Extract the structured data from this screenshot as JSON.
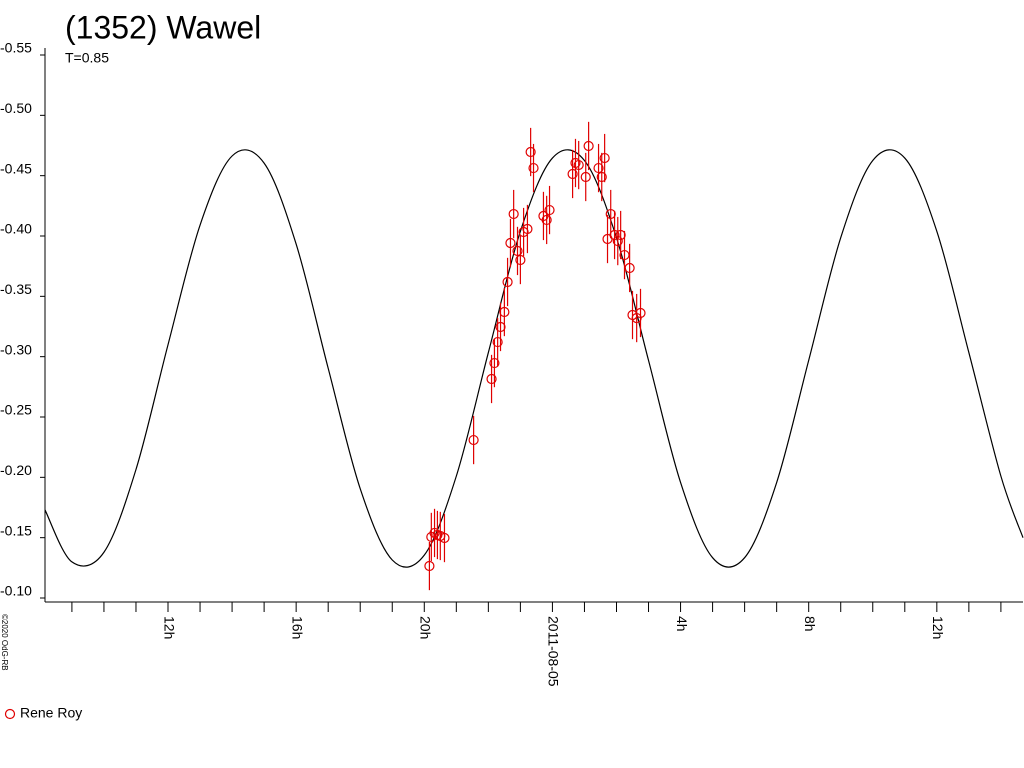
{
  "chart_data": {
    "type": "scatter",
    "title": "(1352) Wawel",
    "subtitle": "T=0.85",
    "copyright": "©2020 OdG-RB",
    "xlim": [
      8.16,
      38.69
    ],
    "xticks": [
      {
        "value": 12,
        "label": "12h"
      },
      {
        "value": 16,
        "label": "16h"
      },
      {
        "value": 20,
        "label": "20h"
      },
      {
        "value": 24,
        "label": "2011-08-05"
      },
      {
        "value": 28,
        "label": "4h"
      },
      {
        "value": 32,
        "label": "8h"
      },
      {
        "value": 36,
        "label": "12h"
      }
    ],
    "xminorticks": [
      9,
      10,
      11,
      13,
      14,
      15,
      17,
      18,
      19,
      21,
      22,
      23,
      25,
      26,
      27,
      29,
      30,
      31,
      33,
      34,
      35,
      37,
      38
    ],
    "ylim": [
      -0.1,
      -0.55
    ],
    "yticks": [
      -0.55,
      {
        "value": -0.5,
        "label": "-0.50"
      },
      -0.45,
      {
        "value": -0.4,
        "label": "-0.40"
      },
      -0.35,
      {
        "value": -0.3,
        "label": "-0.30"
      },
      -0.25,
      {
        "value": -0.2,
        "label": "-0.20"
      },
      -0.15,
      {
        "value": -0.1,
        "label": "-0.10"
      }
    ],
    "curve": {
      "color": "#000000",
      "x": [
        8.16,
        9,
        10,
        11,
        12,
        13,
        14,
        15,
        16,
        17,
        18,
        19,
        20,
        21,
        22,
        23,
        24,
        25,
        26,
        27,
        28,
        29,
        30,
        31,
        32,
        33,
        34,
        35,
        36,
        37,
        38,
        38.69
      ],
      "values": [
        -0.173,
        -0.1299,
        -0.1379,
        -0.2065,
        -0.3099,
        -0.409,
        -0.4663,
        -0.4604,
        -0.3933,
        -0.2904,
        -0.1906,
        -0.1315,
        -0.1355,
        -0.201,
        -0.3034,
        -0.4039,
        -0.4646,
        -0.4626,
        -0.3986,
        -0.2969,
        -0.1958,
        -0.1334,
        -0.1334,
        -0.1957,
        -0.2969,
        -0.3986,
        -0.4626,
        -0.4646,
        -0.4039,
        -0.3034,
        -0.201,
        -0.15
      ]
    },
    "series": [
      {
        "name": "Rene Roy",
        "color": "#e00000",
        "x": [
          20.16,
          20.22,
          20.32,
          20.41,
          20.5,
          20.63,
          21.54,
          22.1,
          22.19,
          22.29,
          22.38,
          22.5,
          22.6,
          22.69,
          22.79,
          22.91,
          23.0,
          23.1,
          23.22,
          23.32,
          23.41,
          23.72,
          23.82,
          23.91,
          24.63,
          24.72,
          24.82,
          25.04,
          25.13,
          25.44,
          25.54,
          25.63,
          25.72,
          25.82,
          25.94,
          26.04,
          26.13,
          26.25,
          26.41,
          26.5,
          26.63,
          26.75
        ],
        "values": [
          -0.1265,
          -0.1506,
          -0.1539,
          -0.1522,
          -0.1514,
          -0.1497,
          -0.2309,
          -0.2815,
          -0.2947,
          -0.3121,
          -0.3246,
          -0.337,
          -0.3619,
          -0.3942,
          -0.4182,
          -0.3876,
          -0.3801,
          -0.4033,
          -0.4058,
          -0.4696,
          -0.4563,
          -0.4166,
          -0.4133,
          -0.4215,
          -0.4514,
          -0.4605,
          -0.4588,
          -0.4489,
          -0.4746,
          -0.4563,
          -0.4489,
          -0.4646,
          -0.3975,
          -0.4182,
          -0.4008,
          -0.3958,
          -0.4008,
          -0.3842,
          -0.3735,
          -0.3345,
          -0.332,
          -0.3362
        ],
        "errors": [
          0.02,
          0.02,
          0.02,
          0.02,
          0.02,
          0.02,
          0.02,
          0.02,
          0.02,
          0.02,
          0.02,
          0.02,
          0.02,
          0.02,
          0.02,
          0.02,
          0.02,
          0.02,
          0.02,
          0.02,
          0.02,
          0.02,
          0.02,
          0.02,
          0.02,
          0.02,
          0.02,
          0.02,
          0.02,
          0.02,
          0.02,
          0.02,
          0.02,
          0.02,
          0.02,
          0.02,
          0.02,
          0.02,
          0.02,
          0.02,
          0.02,
          0.02
        ]
      }
    ]
  }
}
